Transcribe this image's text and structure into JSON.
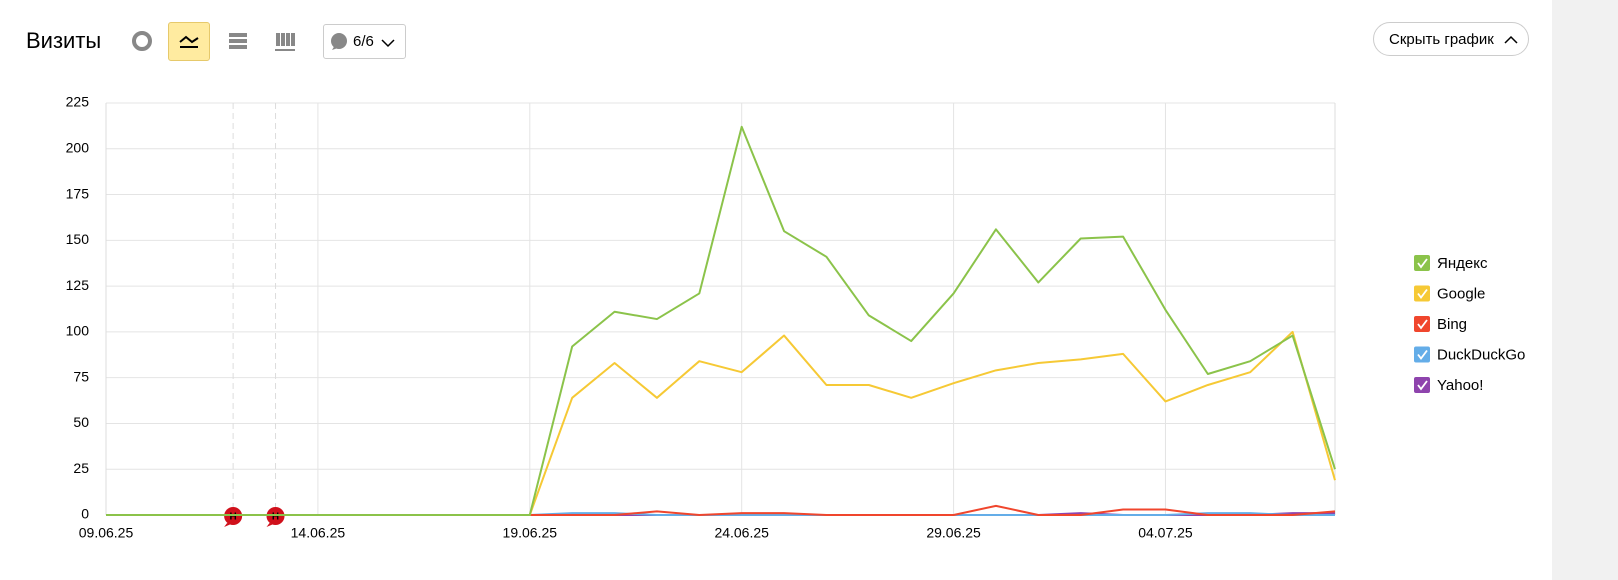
{
  "ui": {
    "title": "Визиты",
    "counter": "6/6",
    "hide_button": "Скрыть график"
  },
  "chart_data": {
    "type": "line",
    "categories": [
      "09.06.25",
      null,
      null,
      null,
      null,
      "14.06.25",
      null,
      null,
      null,
      null,
      "19.06.25",
      null,
      null,
      null,
      null,
      "24.06.25",
      null,
      null,
      null,
      null,
      "29.06.25",
      null,
      null,
      null,
      null,
      "04.07.25",
      null,
      null,
      null,
      null
    ],
    "highlighted_categories": [
      5,
      20
    ],
    "highlight_color": "#c0282d",
    "ylim": [
      0,
      225
    ],
    "yticks": [
      0,
      25,
      50,
      75,
      100,
      125,
      150,
      175,
      200,
      225
    ],
    "grid": true,
    "annotations": [
      {
        "index": 3,
        "label": "Н"
      },
      {
        "index": 4,
        "label": "Н"
      }
    ],
    "annotation_color": "#d0101b",
    "series": [
      {
        "name": "Яндекс",
        "color": "#8bc34a",
        "values": [
          0,
          0,
          0,
          0,
          0,
          0,
          0,
          0,
          0,
          0,
          0,
          92,
          111,
          107,
          121,
          212,
          155,
          141,
          109,
          95,
          121,
          156,
          127,
          151,
          152,
          112,
          77,
          84,
          98,
          25
        ]
      },
      {
        "name": "Google",
        "color": "#f6c935",
        "values": [
          0,
          0,
          0,
          0,
          0,
          0,
          0,
          0,
          0,
          0,
          0,
          64,
          83,
          64,
          84,
          78,
          98,
          71,
          71,
          64,
          72,
          79,
          83,
          85,
          88,
          62,
          71,
          78,
          100,
          19
        ]
      },
      {
        "name": "Bing",
        "color": "#f0462d",
        "values": [
          0,
          0,
          0,
          0,
          0,
          0,
          0,
          0,
          0,
          0,
          0,
          0,
          0,
          2,
          0,
          1,
          1,
          0,
          0,
          0,
          0,
          5,
          0,
          0,
          3,
          3,
          0,
          0,
          0,
          2
        ]
      },
      {
        "name": "DuckDuckGo",
        "color": "#64ade8",
        "values": [
          0,
          0,
          0,
          0,
          0,
          0,
          0,
          0,
          0,
          0,
          0,
          1,
          1,
          0,
          0,
          0,
          0,
          0,
          0,
          0,
          0,
          0,
          0,
          0,
          0,
          0,
          1,
          1,
          0,
          0
        ]
      },
      {
        "name": "Yahoo!",
        "color": "#8e44ad",
        "values": [
          0,
          0,
          0,
          0,
          0,
          0,
          0,
          0,
          0,
          0,
          0,
          0,
          0,
          0,
          0,
          0,
          0,
          0,
          0,
          0,
          0,
          0,
          0,
          1,
          0,
          0,
          0,
          0,
          1,
          1
        ]
      }
    ]
  }
}
